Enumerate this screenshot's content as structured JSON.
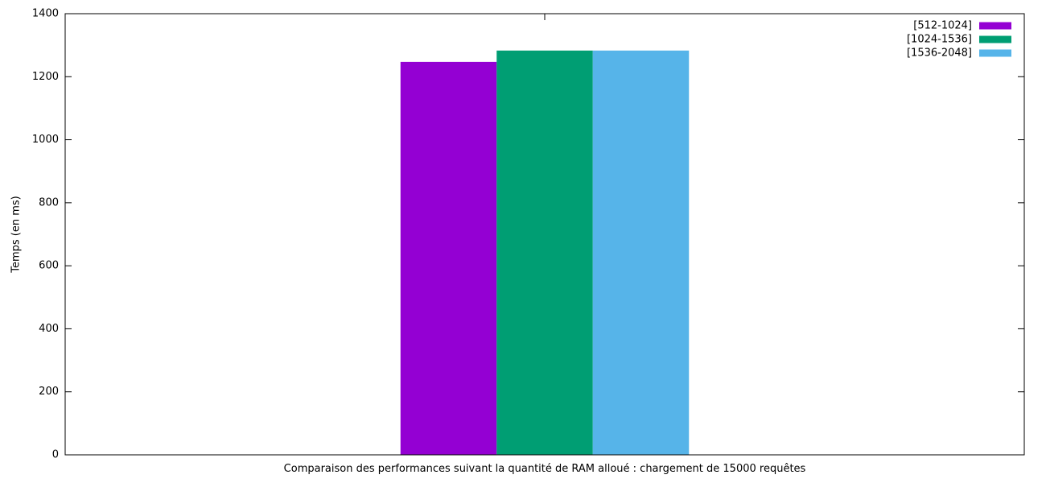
{
  "chart_data": {
    "type": "bar",
    "xlabel": "Comparaison des performances suivant la quantité de RAM alloué : chargement de 15000 requêtes",
    "ylabel": "Temps (en ms)",
    "ylim": [
      0,
      1400
    ],
    "yticks": [
      "0",
      "200",
      "400",
      "600",
      "800",
      "1000",
      "1200",
      "1400"
    ],
    "grid": false,
    "legend_position": "top-right",
    "categories": [
      ""
    ],
    "series": [
      {
        "name": "[512-1024]",
        "values": [
          1247
        ],
        "color": "#9400d3"
      },
      {
        "name": "[1024-1536]",
        "values": [
          1283
        ],
        "color": "#009e73"
      },
      {
        "name": "[1536-2048]",
        "values": [
          1283
        ],
        "color": "#56b4e9"
      }
    ]
  }
}
